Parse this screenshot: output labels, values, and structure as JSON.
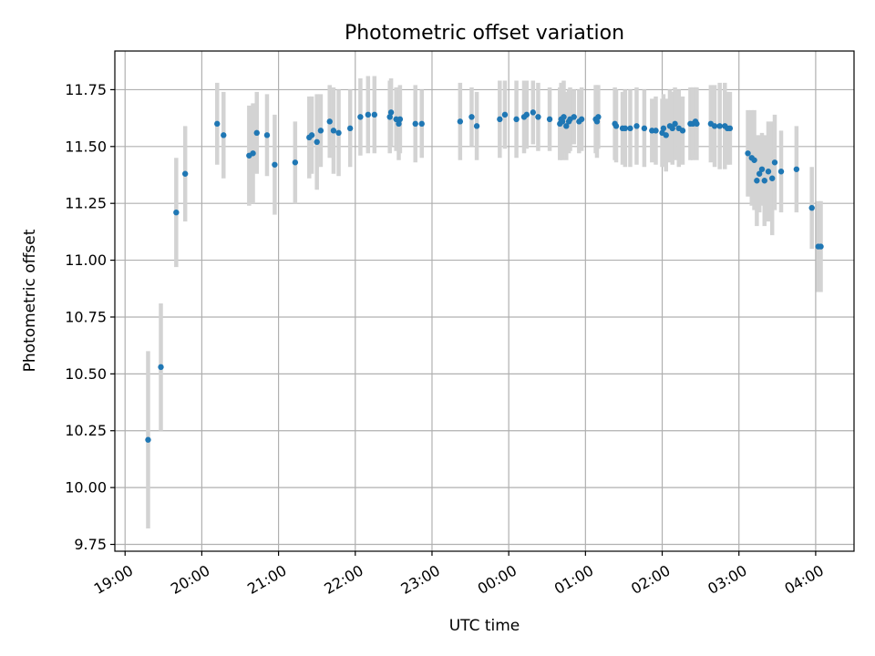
{
  "chart_data": {
    "type": "scatter",
    "title": "Photometric offset variation",
    "xlabel": "UTC time",
    "ylabel": "Photometric offset",
    "grid": true,
    "xlim": [
      "18:52",
      "04:30"
    ],
    "ylim": [
      9.72,
      11.92
    ],
    "x_ticks": [
      "19:00",
      "20:00",
      "21:00",
      "22:00",
      "23:00",
      "00:00",
      "01:00",
      "02:00",
      "03:00",
      "04:00"
    ],
    "y_ticks": [
      9.75,
      10.0,
      10.25,
      10.5,
      10.75,
      11.0,
      11.25,
      11.5,
      11.75
    ],
    "y_tick_labels": [
      "9.75",
      "10.00",
      "10.25",
      "10.50",
      "10.75",
      "11.00",
      "11.25",
      "11.50",
      "11.75"
    ],
    "colors": {
      "point": "#1f77b4",
      "errorbar": "#d3d3d3"
    },
    "series": [
      {
        "time": [
          "19:18",
          "19:28",
          "19:40",
          "19:47",
          "20:12",
          "20:17",
          "20:37",
          "20:40",
          "20:43",
          "20:51",
          "20:57",
          "21:13",
          "21:24",
          "21:26",
          "21:30",
          "21:33",
          "21:40",
          "21:43",
          "21:47",
          "21:56",
          "22:04",
          "22:10",
          "22:15",
          "22:27",
          "22:28",
          "22:32",
          "22:34",
          "22:35",
          "22:47",
          "22:52",
          "23:22",
          "23:31",
          "23:35",
          "23:53",
          "23:57",
          "00:06",
          "00:12",
          "00:14",
          "00:19",
          "00:23",
          "00:32",
          "00:40",
          "00:41",
          "00:42",
          "00:43",
          "00:45",
          "00:47",
          "00:48",
          "00:51",
          "00:55",
          "00:57",
          "01:08",
          "01:09",
          "01:10",
          "01:23",
          "01:24",
          "01:29",
          "01:31",
          "01:35",
          "01:40",
          "01:46",
          "01:52",
          "01:55",
          "02:00",
          "02:01",
          "02:03",
          "02:06",
          "02:08",
          "02:10",
          "02:13",
          "02:16",
          "02:22",
          "02:24",
          "02:26",
          "02:27",
          "02:38",
          "02:41",
          "02:45",
          "02:49",
          "02:51",
          "02:53",
          "03:07",
          "03:10",
          "03:12",
          "03:14",
          "03:16",
          "03:18",
          "03:20",
          "03:23",
          "03:26",
          "03:28",
          "03:33",
          "03:45",
          "03:57",
          "04:02",
          "04:04"
        ],
        "y": [
          10.21,
          10.53,
          11.21,
          11.38,
          11.6,
          11.55,
          11.46,
          11.47,
          11.56,
          11.55,
          11.42,
          11.43,
          11.54,
          11.55,
          11.52,
          11.57,
          11.61,
          11.57,
          11.56,
          11.58,
          11.63,
          11.64,
          11.64,
          11.63,
          11.65,
          11.62,
          11.6,
          11.62,
          11.6,
          11.6,
          11.61,
          11.63,
          11.59,
          11.62,
          11.64,
          11.62,
          11.63,
          11.64,
          11.65,
          11.63,
          11.62,
          11.6,
          11.62,
          11.61,
          11.63,
          11.59,
          11.61,
          11.62,
          11.63,
          11.61,
          11.62,
          11.62,
          11.61,
          11.63,
          11.6,
          11.59,
          11.58,
          11.58,
          11.58,
          11.59,
          11.58,
          11.57,
          11.57,
          11.56,
          11.58,
          11.55,
          11.59,
          11.58,
          11.6,
          11.58,
          11.57,
          11.6,
          11.6,
          11.61,
          11.6,
          11.6,
          11.59,
          11.59,
          11.59,
          11.58,
          11.58,
          11.47,
          11.45,
          11.44,
          11.35,
          11.38,
          11.4,
          11.35,
          11.39,
          11.36,
          11.43,
          11.39,
          11.4,
          11.23,
          11.06,
          11.06
        ],
        "err": [
          0.39,
          0.28,
          0.24,
          0.21,
          0.18,
          0.19,
          0.22,
          0.22,
          0.18,
          0.18,
          0.22,
          0.18,
          0.18,
          0.17,
          0.21,
          0.16,
          0.16,
          0.19,
          0.19,
          0.17,
          0.17,
          0.17,
          0.17,
          0.16,
          0.15,
          0.14,
          0.16,
          0.15,
          0.17,
          0.15,
          0.17,
          0.13,
          0.15,
          0.17,
          0.15,
          0.17,
          0.16,
          0.15,
          0.14,
          0.15,
          0.14,
          0.16,
          0.16,
          0.17,
          0.16,
          0.15,
          0.14,
          0.14,
          0.12,
          0.14,
          0.14,
          0.15,
          0.16,
          0.14,
          0.16,
          0.16,
          0.16,
          0.17,
          0.17,
          0.17,
          0.17,
          0.14,
          0.15,
          0.15,
          0.15,
          0.16,
          0.16,
          0.16,
          0.16,
          0.17,
          0.15,
          0.16,
          0.16,
          0.15,
          0.16,
          0.17,
          0.18,
          0.19,
          0.19,
          0.16,
          0.16,
          0.19,
          0.21,
          0.22,
          0.2,
          0.17,
          0.16,
          0.2,
          0.22,
          0.25,
          0.21,
          0.18,
          0.19,
          0.18,
          0.2,
          0.2
        ]
      }
    ]
  }
}
